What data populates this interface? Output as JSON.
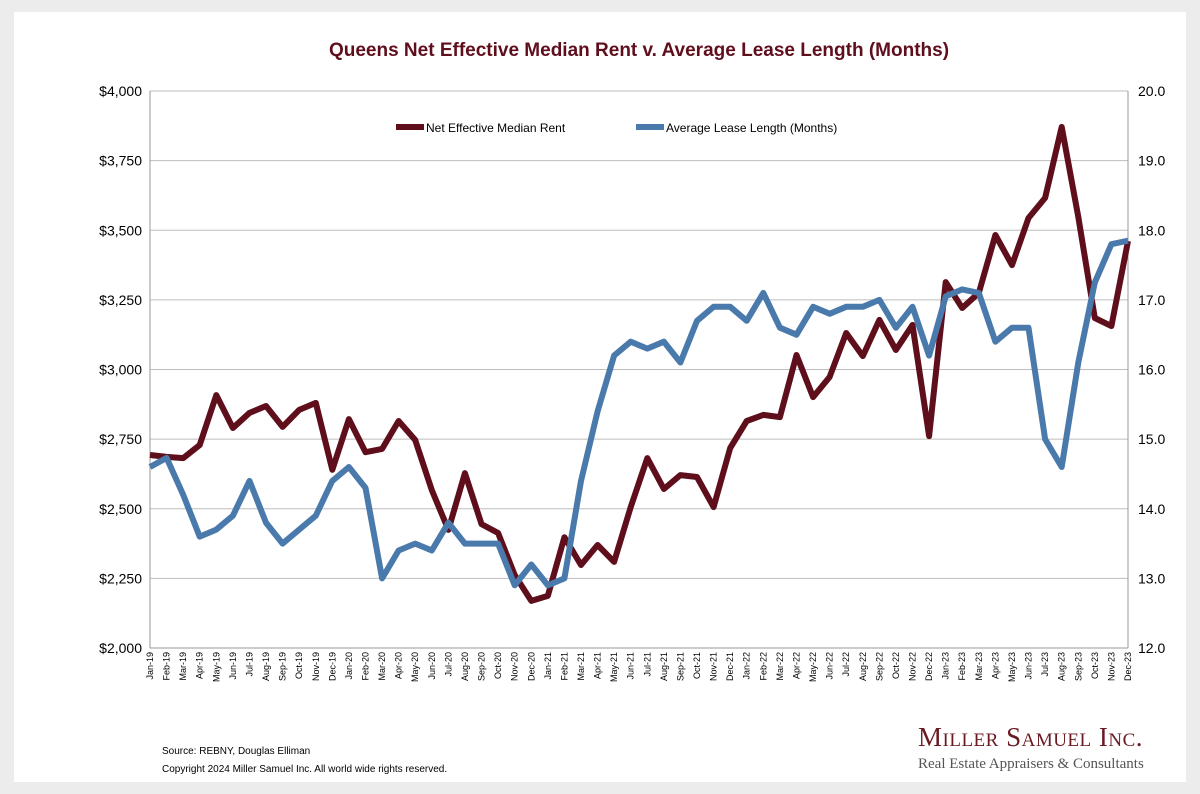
{
  "chart_data": {
    "type": "line",
    "title": "Queens Net Effective Median Rent v. Average Lease Length (Months)",
    "categories": [
      "Jan-19",
      "Feb-19",
      "Mar-19",
      "Apr-19",
      "May-19",
      "Jun-19",
      "Jul-19",
      "Aug-19",
      "Sep-19",
      "Oct-19",
      "Nov-19",
      "Dec-19",
      "Jan-20",
      "Feb-20",
      "Mar-20",
      "Apr-20",
      "May-20",
      "Jun-20",
      "Jul-20",
      "Aug-20",
      "Sep-20",
      "Oct-20",
      "Nov-20",
      "Dec-20",
      "Jan-21",
      "Feb-21",
      "Mar-21",
      "Apr-21",
      "May-21",
      "Jun-21",
      "Jul-21",
      "Aug-21",
      "Sep-21",
      "Oct-21",
      "Nov-21",
      "Dec-21",
      "Jan-22",
      "Feb-22",
      "Mar-22",
      "Apr-22",
      "May-22",
      "Jun-22",
      "Jul-22",
      "Aug-22",
      "Sep-22",
      "Oct-22",
      "Nov-22",
      "Dec-22",
      "Jan-23",
      "Feb-23",
      "Mar-23",
      "Apr-23",
      "May-23",
      "Jun-23",
      "Jul-23",
      "Aug-23",
      "Sep-23",
      "Oct-23",
      "Nov-23",
      "Dec-23"
    ],
    "series": [
      {
        "name": "Net Effective Median Rent",
        "axis": "left",
        "color": "#5f0f1c",
        "values": [
          2693,
          2686,
          2682,
          2729,
          2908,
          2790,
          2844,
          2869,
          2794,
          2855,
          2880,
          2640,
          2822,
          2703,
          2715,
          2815,
          2747,
          2567,
          2424,
          2628,
          2445,
          2413,
          2262,
          2169,
          2187,
          2398,
          2298,
          2370,
          2309,
          2506,
          2682,
          2571,
          2621,
          2614,
          2506,
          2718,
          2815,
          2837,
          2829,
          3052,
          2901,
          2973,
          3131,
          3048,
          3178,
          3070,
          3160,
          2761,
          3314,
          3221,
          3275,
          3483,
          3375,
          3544,
          3616,
          3871,
          3548,
          3185,
          3156,
          3461
        ]
      },
      {
        "name": "Average Lease Length (Months)",
        "axis": "right",
        "color": "#4a7aab",
        "values": [
          14.6,
          14.73,
          14.2,
          13.6,
          13.7,
          13.9,
          14.4,
          13.8,
          13.5,
          13.7,
          13.9,
          14.4,
          14.6,
          14.3,
          13.0,
          13.4,
          13.5,
          13.4,
          13.8,
          13.5,
          13.5,
          13.5,
          12.9,
          13.2,
          12.9,
          13.0,
          14.4,
          15.4,
          16.2,
          16.4,
          16.3,
          16.4,
          16.1,
          16.7,
          16.9,
          16.9,
          16.7,
          17.1,
          16.6,
          16.5,
          16.9,
          16.8,
          16.9,
          16.9,
          17.0,
          16.6,
          16.9,
          16.2,
          17.05,
          17.15,
          17.1,
          16.4,
          16.6,
          16.6,
          15.0,
          14.6,
          16.1,
          17.25,
          17.8,
          17.85
        ]
      }
    ],
    "y_left": {
      "range": [
        2000,
        4000
      ],
      "ticks": [
        "$2,000",
        "$2,250",
        "$2,500",
        "$2,750",
        "$3,000",
        "$3,250",
        "$3,500",
        "$3,750",
        "$4,000"
      ]
    },
    "y_right": {
      "range": [
        12,
        20
      ],
      "ticks": [
        "12.0",
        "13.0",
        "14.0",
        "15.0",
        "16.0",
        "17.0",
        "18.0",
        "19.0",
        "20.0"
      ]
    },
    "grid": true,
    "legend": "top-center",
    "title_color": "#5f0f1c"
  },
  "footer": {
    "source": "Source: REBNY, Douglas Elliman",
    "copyright": "Copyright 2024 Miller Samuel Inc.  All world wide rights reserved."
  },
  "logo": {
    "name": "Miller Samuel Inc.",
    "tagline": "Real Estate Appraisers & Consultants"
  }
}
